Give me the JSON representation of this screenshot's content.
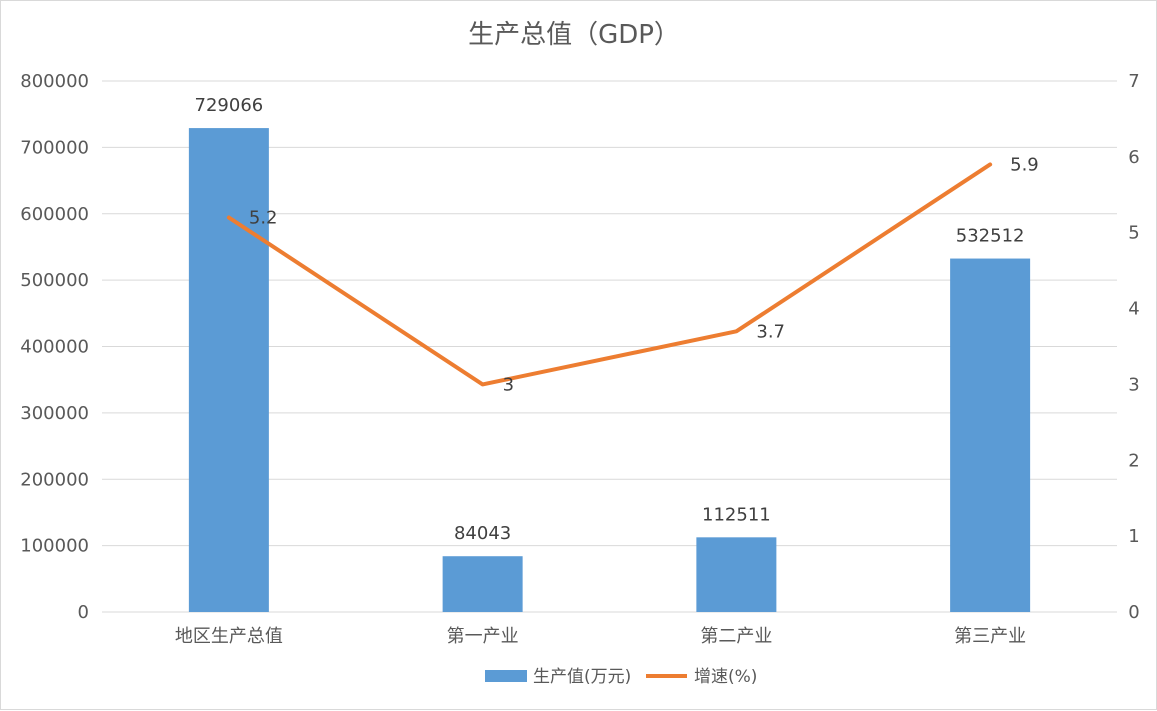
{
  "chart_data": {
    "type": "bar",
    "title": "生产总值（GDP）",
    "categories": [
      "地区生产总值",
      "第一产业",
      "第二产业",
      "第三产业"
    ],
    "series": [
      {
        "name": "生产值(万元)",
        "type": "bar",
        "axis": "left",
        "color": "#5b9bd5",
        "values": [
          729066,
          84043,
          112511,
          532512
        ]
      },
      {
        "name": "增速(%)",
        "type": "line",
        "axis": "right",
        "color": "#ed7d31",
        "values": [
          5.2,
          3,
          3.7,
          5.9
        ]
      }
    ],
    "y_left": {
      "min": 0,
      "max": 800000,
      "ticks": [
        "0",
        "100000",
        "200000",
        "300000",
        "400000",
        "500000",
        "600000",
        "700000",
        "800000"
      ]
    },
    "y_right": {
      "min": 0,
      "max": 7,
      "ticks": [
        "0",
        "1",
        "2",
        "3",
        "4",
        "5",
        "6",
        "7"
      ]
    },
    "grid": true,
    "legend_position": "bottom"
  }
}
